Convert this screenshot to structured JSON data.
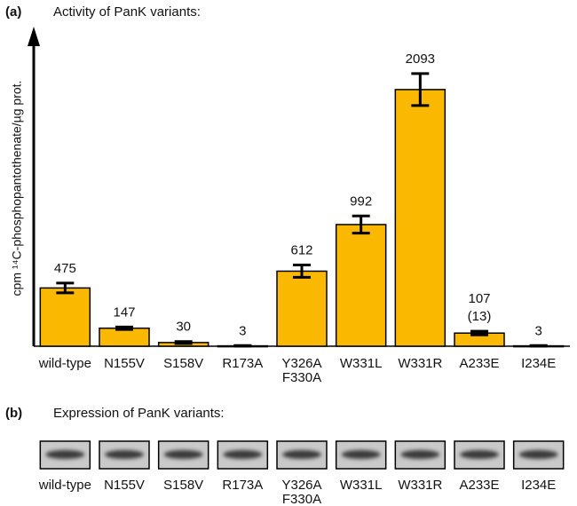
{
  "chart_data": {
    "type": "bar",
    "panel_label": "(a)",
    "title": "Activity of PanK variants:",
    "ylabel": "cpm ¹⁴C-phosphopantothenate/µg prot.",
    "categories": [
      "wild-type",
      "N155V",
      "S158V",
      "R173A",
      "Y326A\nF330A",
      "W331L",
      "W331R",
      "A233E",
      "I234E"
    ],
    "values": [
      475,
      147,
      30,
      3,
      612,
      992,
      2093,
      107,
      3
    ],
    "errors": [
      40,
      10,
      8,
      2,
      50,
      70,
      130,
      15,
      2
    ],
    "annotations": [
      "(13)"
    ],
    "color": "#fbb800",
    "ylim": [
      0,
      2570
    ]
  },
  "panel_b": {
    "panel_label": "(b)",
    "title": "Expression of PanK variants:",
    "lanes": [
      "wild-type",
      "N155V",
      "S158V",
      "R173A",
      "Y326A\nF330A",
      "W331L",
      "W331R",
      "A233E",
      "I234E"
    ]
  }
}
